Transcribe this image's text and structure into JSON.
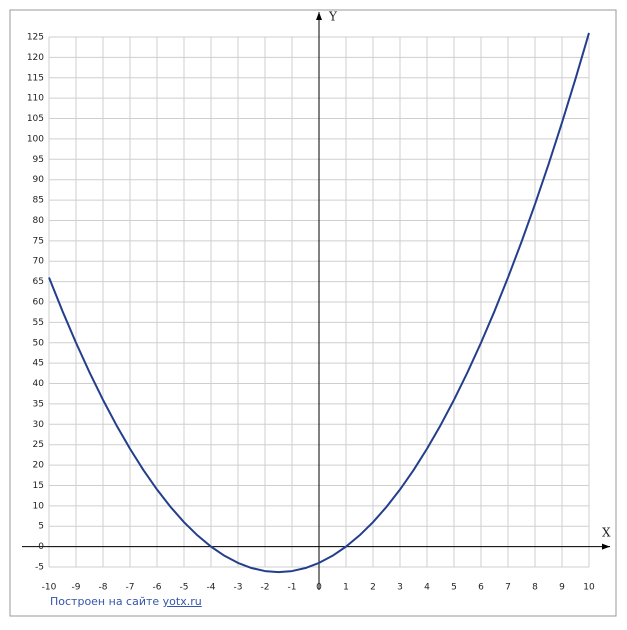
{
  "chart_data": {
    "type": "line",
    "x_label": "X",
    "y_label": "Y",
    "xlim": [
      -10,
      10
    ],
    "ylim": [
      -5,
      125
    ],
    "xticks": [
      -10,
      -9,
      -8,
      -7,
      -6,
      -5,
      -4,
      -3,
      -2,
      -1,
      0,
      1,
      2,
      3,
      4,
      5,
      6,
      7,
      8,
      9,
      10
    ],
    "yticks": [
      -5,
      0,
      5,
      10,
      15,
      20,
      25,
      30,
      35,
      40,
      45,
      50,
      55,
      60,
      65,
      70,
      75,
      80,
      85,
      90,
      95,
      100,
      105,
      110,
      115,
      120,
      125
    ],
    "grid": true,
    "series": [
      {
        "color": "#233f8c",
        "x": [
          -10,
          -9.5,
          -9,
          -8.5,
          -8,
          -7.5,
          -7,
          -6.5,
          -6,
          -5.5,
          -5,
          -4.5,
          -4,
          -3.5,
          -3,
          -2.5,
          -2,
          -1.5,
          -1,
          -0.5,
          0,
          0.5,
          1,
          1.5,
          2,
          2.5,
          3,
          3.5,
          4,
          4.5,
          5,
          5.5,
          6,
          6.5,
          7,
          7.5,
          8,
          8.5,
          9,
          9.5,
          10
        ],
        "values": [
          66,
          57.75,
          50,
          42.75,
          36,
          29.75,
          24,
          18.75,
          14,
          9.75,
          6,
          2.75,
          0,
          -2.25,
          -4,
          -5.25,
          -6,
          -6.25,
          -6,
          -5.25,
          -4,
          -2.25,
          0,
          2.75,
          6,
          9.75,
          14,
          18.75,
          24,
          29.75,
          36,
          42.75,
          50,
          57.75,
          66,
          74.75,
          84,
          93.75,
          104,
          114.75,
          126
        ]
      }
    ],
    "credit": {
      "text": "Построен на сайте",
      "link": "yotx.ru"
    }
  }
}
